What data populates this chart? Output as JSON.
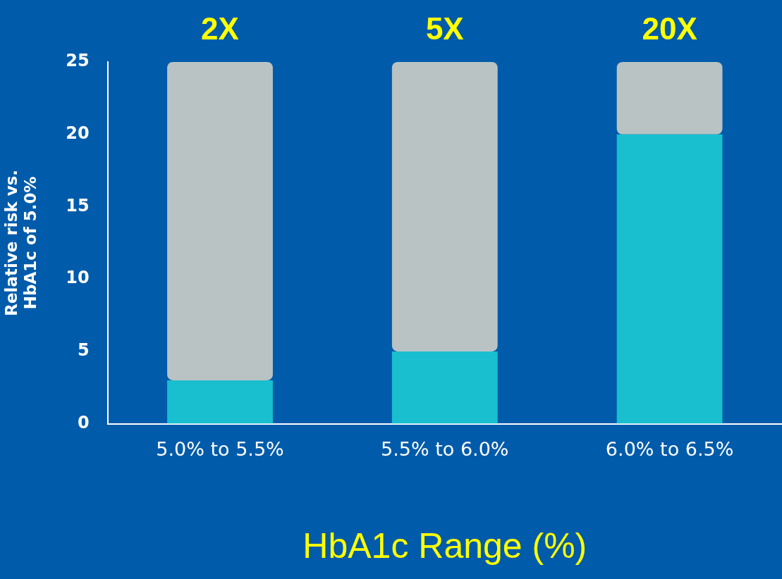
{
  "chart_data": {
    "type": "bar",
    "stacked": true,
    "categories": [
      "5.0% to 5.5%",
      "5.5% to 6.0%",
      "6.0% to 6.5%"
    ],
    "annotations": [
      "2X",
      "5X",
      "20X"
    ],
    "series": [
      {
        "color": "#19bfcf",
        "values": [
          3,
          5,
          20
        ]
      },
      {
        "color": "#b9c3c4",
        "values": [
          22,
          20,
          5
        ]
      }
    ],
    "ylim": [
      0,
      25
    ],
    "yticks": [
      0,
      5,
      10,
      15,
      20,
      25
    ],
    "ylabel": "Relative risk vs.\nHbA1c of 5.0%",
    "xlabel": "HbA1c Range (%)",
    "grid": false,
    "legend": false
  }
}
